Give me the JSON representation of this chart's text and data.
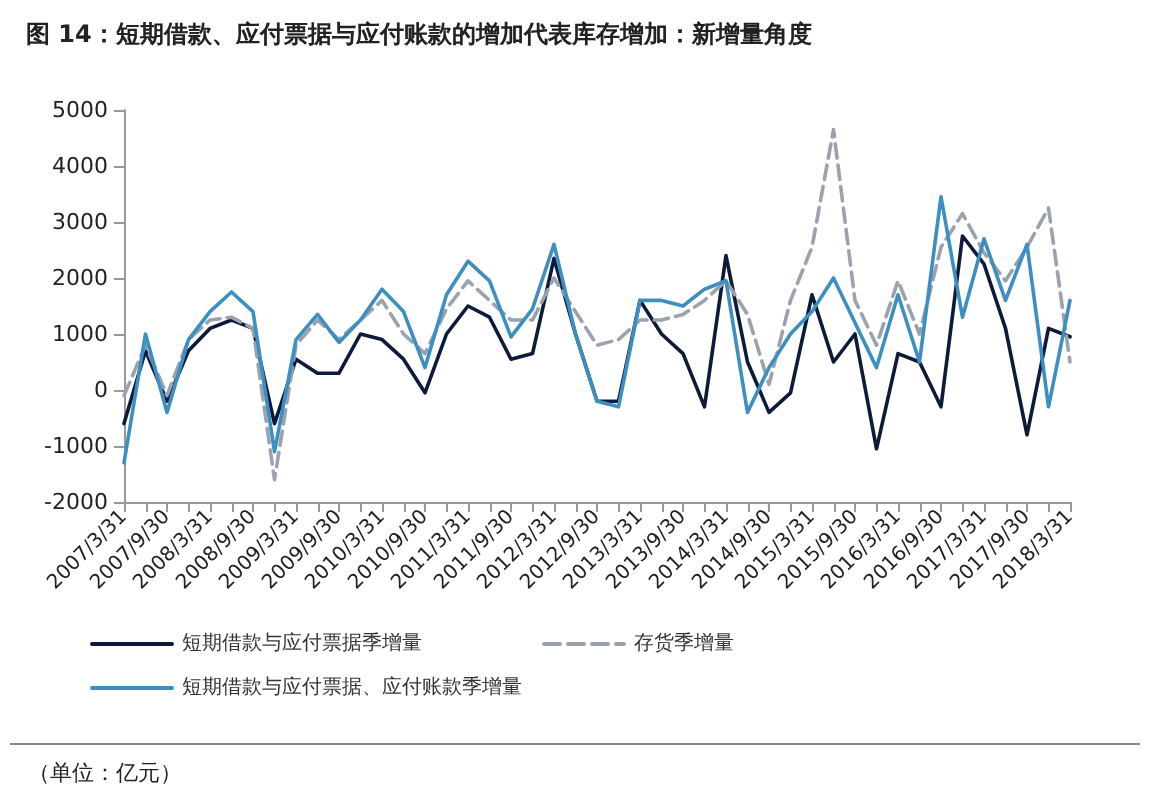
{
  "chart_data": {
    "type": "line",
    "title": "图 14：短期借款、应付票据与应付账款的增加代表库存增加：新增量角度",
    "annotations": [
      "（单位：亿元）"
    ],
    "categories": [
      "2007/3/31",
      null,
      "2007/9/30",
      null,
      "2008/3/31",
      null,
      "2008/9/30",
      null,
      "2009/3/31",
      null,
      "2009/9/30",
      null,
      "2010/3/31",
      null,
      "2010/9/30",
      null,
      "2011/3/31",
      null,
      "2011/9/30",
      null,
      "2012/3/31",
      null,
      "2012/9/30",
      null,
      "2013/3/31",
      null,
      "2013/9/30",
      null,
      "2014/3/31",
      null,
      "2014/9/30",
      null,
      "2015/3/31",
      null,
      "2015/9/30",
      null,
      "2016/3/31",
      null,
      "2016/9/30",
      null,
      "2017/3/31",
      null,
      "2017/9/30",
      null,
      "2018/3/31"
    ],
    "series": [
      {
        "name": "短期借款与应付票据季增量",
        "color": "#0d1b3a",
        "line_style": "solid",
        "values": [
          -600,
          700,
          -200,
          700,
          1100,
          1250,
          1100,
          -600,
          550,
          300,
          300,
          1000,
          900,
          550,
          -50,
          1000,
          1500,
          1300,
          550,
          650,
          2350,
          1000,
          -200,
          -200,
          1600,
          1000,
          650,
          -300,
          2400,
          500,
          -400,
          -50,
          1700,
          500,
          1000,
          -1050,
          650,
          500,
          -300,
          2750,
          2250,
          1100,
          -800,
          1100,
          950
        ]
      },
      {
        "name": "存货季增量",
        "color": "#9aa3ad",
        "line_style": "dashed",
        "values": [
          -100,
          800,
          -100,
          900,
          1250,
          1300,
          1100,
          -1600,
          800,
          1250,
          900,
          1250,
          1600,
          1000,
          650,
          1450,
          1950,
          1600,
          1250,
          1250,
          2000,
          1400,
          800,
          900,
          1250,
          1250,
          1350,
          1600,
          1950,
          1350,
          100,
          1600,
          2550,
          4650,
          1600,
          800,
          1950,
          1000,
          2550,
          3150,
          2450,
          1950,
          2550,
          3250,
          500
        ]
      },
      {
        "name": "短期借款与应付票据、应付账款季增量",
        "color": "#3d8fc1",
        "line_style": "solid",
        "values": [
          -1300,
          1000,
          -400,
          900,
          1400,
          1750,
          1400,
          -1100,
          900,
          1350,
          850,
          1250,
          1800,
          1400,
          400,
          1700,
          2300,
          1950,
          950,
          1450,
          2600,
          1000,
          -200,
          -300,
          1600,
          1600,
          1500,
          1800,
          1950,
          -400,
          400,
          1000,
          1400,
          2000,
          1200,
          400,
          1700,
          500,
          3450,
          1300,
          2700,
          1600,
          2600,
          -300,
          1600
        ]
      }
    ],
    "ylim": [
      -2000,
      5000
    ],
    "yticks": [
      -2000,
      -1000,
      0,
      1000,
      2000,
      3000,
      4000,
      5000
    ],
    "grid": false,
    "legend": "bottom",
    "marker": "none"
  }
}
